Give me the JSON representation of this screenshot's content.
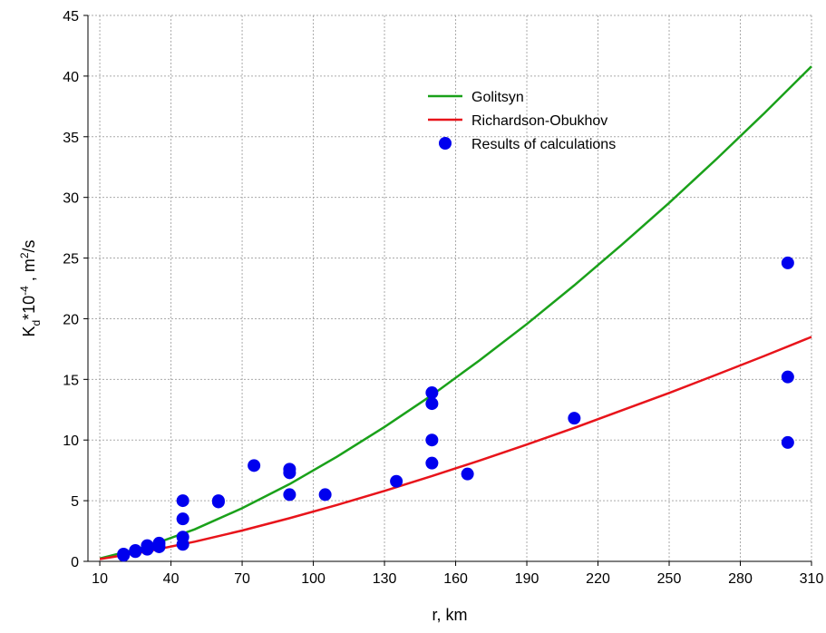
{
  "chart_data": {
    "type": "line_scatter",
    "x_label": "r, km",
    "y_label_parts": [
      "K",
      "d",
      "*10",
      "-4",
      " , m",
      "2",
      "/s"
    ],
    "y_label_styles": [
      "normal",
      "sub",
      "normal",
      "sup",
      "normal",
      "sup",
      "normal"
    ],
    "xlim": [
      5,
      310
    ],
    "ylim": [
      0,
      45
    ],
    "xticks": [
      10,
      40,
      70,
      100,
      130,
      160,
      190,
      220,
      250,
      280,
      310
    ],
    "yticks": [
      0,
      5,
      10,
      15,
      20,
      25,
      30,
      35,
      40,
      45
    ],
    "grid": true,
    "legend": "upper-center",
    "series": [
      {
        "name": "Golitsyn",
        "kind": "line",
        "color": "#1aa11a",
        "x": [
          10,
          30,
          50,
          70,
          90,
          110,
          130,
          150,
          170,
          190,
          210,
          230,
          250,
          270,
          290,
          310
        ],
        "values": [
          0.24,
          1.23,
          2.64,
          4.38,
          6.37,
          8.63,
          11.08,
          13.7,
          16.56,
          19.56,
          22.75,
          26.09,
          29.55,
          33.17,
          36.92,
          40.8
        ]
      },
      {
        "name": "Richardson-Obukhov",
        "kind": "line",
        "color": "#e8141b",
        "x": [
          10,
          30,
          50,
          70,
          90,
          110,
          130,
          150,
          170,
          190,
          210,
          230,
          250,
          270,
          290,
          310
        ],
        "values": [
          0.19,
          0.82,
          1.62,
          2.54,
          3.56,
          4.65,
          5.81,
          7.03,
          8.3,
          9.63,
          11.0,
          12.44,
          13.88,
          15.39,
          16.92,
          18.5
        ]
      },
      {
        "name": "Results of calculations",
        "kind": "scatter",
        "color": "#0000ee",
        "x": [
          20,
          20,
          25,
          25,
          30,
          30,
          35,
          35,
          45,
          45,
          45,
          45,
          60,
          60,
          75,
          90,
          90,
          90,
          105,
          135,
          150,
          150,
          150,
          150,
          165,
          210,
          300,
          300,
          300
        ],
        "values": [
          0.5,
          0.6,
          0.8,
          0.9,
          1.0,
          1.3,
          1.2,
          1.5,
          1.4,
          2.0,
          3.5,
          5.0,
          4.9,
          5.0,
          7.9,
          5.5,
          7.3,
          7.6,
          5.5,
          6.6,
          8.1,
          10.0,
          13.0,
          13.9,
          7.2,
          11.8,
          9.8,
          15.2,
          24.6
        ]
      }
    ]
  }
}
